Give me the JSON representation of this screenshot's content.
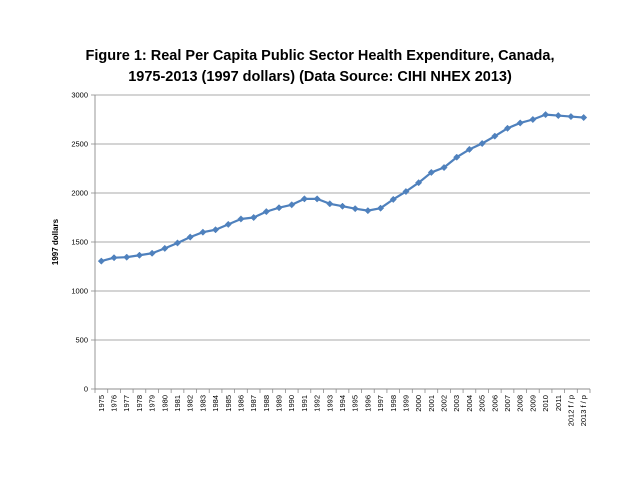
{
  "chart_data": {
    "type": "line",
    "title_line1": "Figure 1: Real Per Capita Public Sector Health Expenditure, Canada,",
    "title_line2": "1975-2013 (1997 dollars) (Data Source: CIHI NHEX 2013)",
    "xlabel": "",
    "ylabel": "1997 dollars",
    "ylim": [
      0,
      3000
    ],
    "yticks": [
      0,
      500,
      1000,
      1500,
      2000,
      2500,
      3000
    ],
    "grid": true,
    "legend": "none",
    "line_color": "#4f81bd",
    "marker_color": "#4f81bd",
    "gridline_color": "#8c8c8c",
    "categories": [
      "1975",
      "1976",
      "1977",
      "1978",
      "1979",
      "1980",
      "1981",
      "1982",
      "1983",
      "1984",
      "1985",
      "1986",
      "1987",
      "1988",
      "1989",
      "1990",
      "1991",
      "1992",
      "1993",
      "1994",
      "1995",
      "1996",
      "1997",
      "1998",
      "1999",
      "2000",
      "2001",
      "2002",
      "2003",
      "2004",
      "2005",
      "2006",
      "2007",
      "2008",
      "2009",
      "2010",
      "2011",
      "2012 f / p",
      "2013 f / p"
    ],
    "values": [
      1305,
      1340,
      1345,
      1365,
      1385,
      1435,
      1490,
      1550,
      1600,
      1625,
      1680,
      1735,
      1750,
      1810,
      1850,
      1880,
      1940,
      1940,
      1890,
      1865,
      1840,
      1820,
      1845,
      1935,
      2015,
      2105,
      2210,
      2260,
      2365,
      2445,
      2505,
      2580,
      2660,
      2715,
      2750,
      2800,
      2790,
      2780,
      2770
    ]
  }
}
